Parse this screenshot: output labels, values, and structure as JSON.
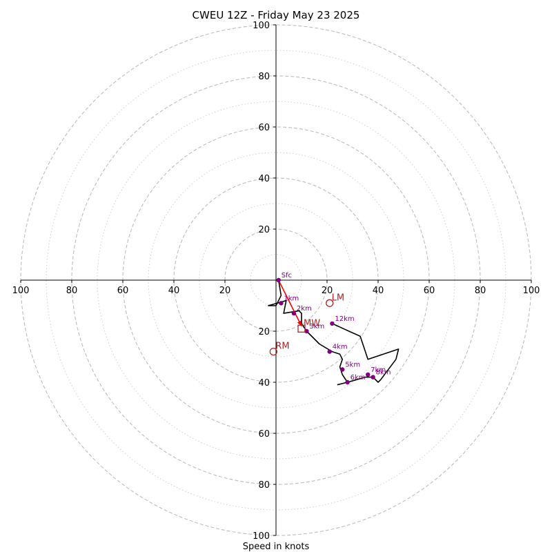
{
  "chart_data": {
    "type": "hodograph",
    "title": "CWEU 12Z - Friday May 23 2025",
    "xlabel": "Speed in knots",
    "ylabel": "",
    "units": "knots",
    "xlim": [
      -100,
      100
    ],
    "ylim": [
      -100,
      100
    ],
    "range_rings_major": [
      20,
      40,
      60,
      80,
      100
    ],
    "range_rings_minor": [
      10,
      30,
      50,
      70,
      90
    ],
    "x_tick_labels": [
      "100",
      "80",
      "60",
      "40",
      "20",
      "20",
      "40",
      "60",
      "80",
      "100"
    ],
    "x_tick_values": [
      -100,
      -80,
      -60,
      -40,
      -20,
      20,
      40,
      60,
      80,
      100
    ],
    "y_tick_labels": [
      "100",
      "80",
      "60",
      "40",
      "20",
      "20",
      "40",
      "60",
      "80",
      "100"
    ],
    "y_tick_values": [
      100,
      80,
      60,
      40,
      20,
      -20,
      -40,
      -60,
      -80,
      -100
    ],
    "profile_trace": {
      "color": "#000000",
      "u": [
        1,
        2,
        0,
        -3,
        4,
        3,
        9,
        10,
        10,
        12,
        17,
        22,
        25,
        26,
        25,
        26,
        28,
        35,
        38,
        40,
        41,
        47,
        48,
        36,
        33,
        22
      ],
      "v": [
        0,
        -6,
        -10,
        -10,
        -8,
        -13,
        -12,
        -13,
        -17,
        -20,
        -25,
        -28,
        -29,
        -31,
        -34,
        -37,
        -40,
        -38,
        -38,
        -40,
        -39,
        -31,
        -27,
        -31,
        -22,
        -17
      ]
    },
    "end_segment": {
      "color": "#000000",
      "u": [
        24,
        28
      ],
      "v": [
        -41,
        -40
      ]
    },
    "height_points": [
      {
        "label": "Sfc",
        "u": 1,
        "v": 0
      },
      {
        "label": "1km",
        "u": 2,
        "v": -9
      },
      {
        "label": "2km",
        "u": 7,
        "v": -13
      },
      {
        "label": "3km",
        "u": 12,
        "v": -20
      },
      {
        "label": "4km",
        "u": 21,
        "v": -28
      },
      {
        "label": "5km",
        "u": 26,
        "v": -35
      },
      {
        "label": "6km",
        "u": 28,
        "v": -40
      },
      {
        "label": "7km",
        "u": 36,
        "v": -37
      },
      {
        "label": "8km",
        "u": 38,
        "v": -38
      },
      {
        "label": "12km",
        "u": 22,
        "v": -17
      }
    ],
    "height_point_color": "#800080",
    "shear_vector": {
      "color": "#ff0000",
      "from_u": 1,
      "from_v": 0,
      "to_u": 10,
      "to_v": -18
    },
    "storm_motion_markers": [
      {
        "label": "LM",
        "marker": "circle",
        "u": 21,
        "v": -9,
        "color": "#b22222"
      },
      {
        "label": "MW",
        "marker": "square",
        "u": 10,
        "v": -19,
        "color": "#b22222"
      },
      {
        "label": "RM",
        "marker": "circle",
        "u": -1,
        "v": -28,
        "color": "#b22222"
      }
    ],
    "grid": true
  }
}
